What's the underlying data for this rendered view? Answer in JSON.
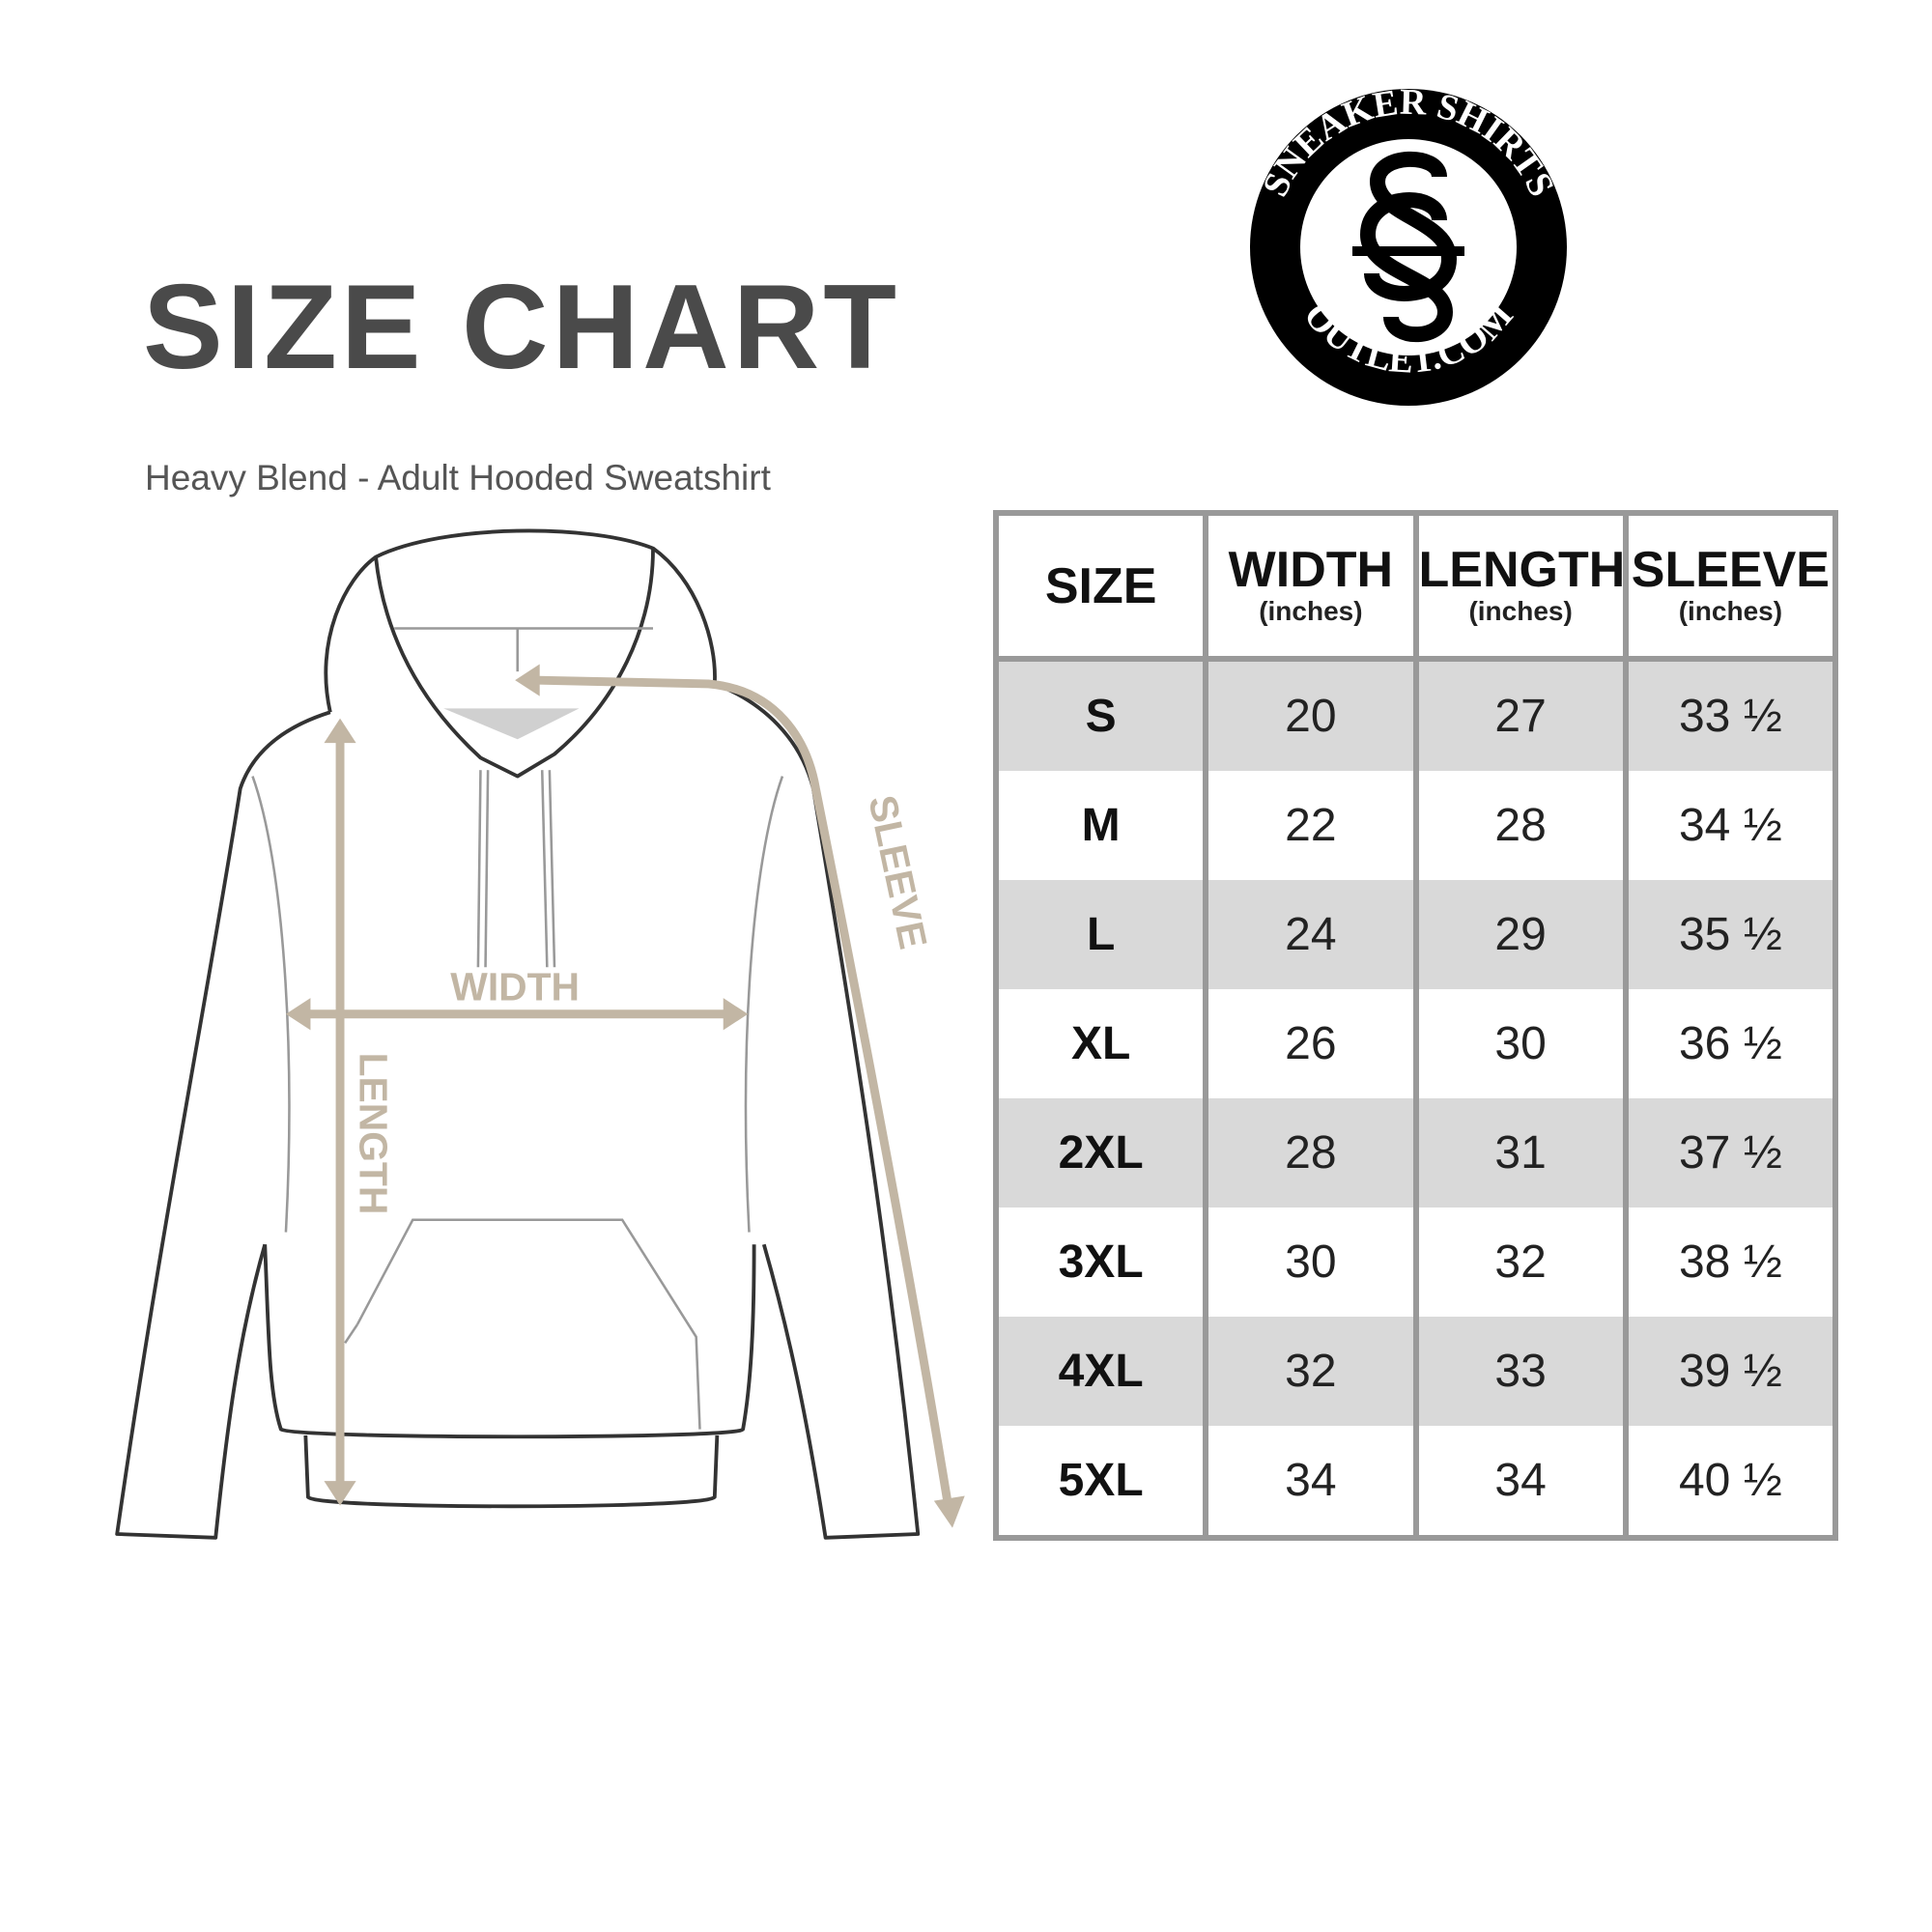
{
  "title": "SIZE CHART",
  "subtitle": "Heavy Blend - Adult Hooded Sweatshirt",
  "logo": {
    "top_text": "SNEAKER SHIRTS",
    "bottom_text": "OUTLET.COM",
    "monogram": "SS"
  },
  "diagram": {
    "width_label": "WIDTH",
    "length_label": "LENGTH",
    "sleeve_label": "SLEEVE",
    "arrow_color": "#c2b6a4"
  },
  "table": {
    "headers": [
      {
        "label": "SIZE",
        "unit": ""
      },
      {
        "label": "WIDTH",
        "unit": "(inches)"
      },
      {
        "label": "LENGTH",
        "unit": "(inches)"
      },
      {
        "label": "SLEEVE",
        "unit": "(inches)"
      }
    ],
    "rows": [
      [
        "S",
        "20",
        "27",
        "33 ½"
      ],
      [
        "M",
        "22",
        "28",
        "34 ½"
      ],
      [
        "L",
        "24",
        "29",
        "35 ½"
      ],
      [
        "XL",
        "26",
        "30",
        "36 ½"
      ],
      [
        "2XL",
        "28",
        "31",
        "37 ½"
      ],
      [
        "3XL",
        "30",
        "32",
        "38 ½"
      ],
      [
        "4XL",
        "32",
        "33",
        "39 ½"
      ],
      [
        "5XL",
        "34",
        "34",
        "40 ½"
      ]
    ]
  }
}
